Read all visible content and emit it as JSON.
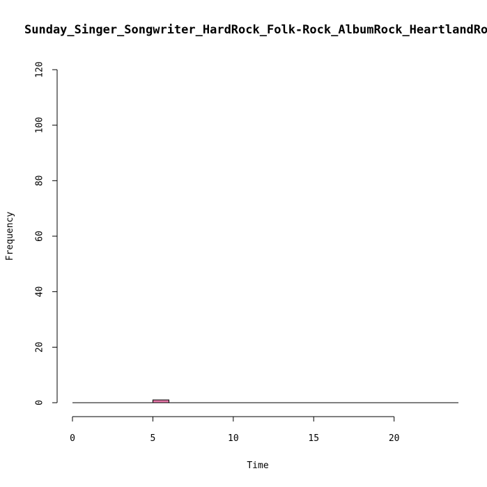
{
  "chart_data": {
    "type": "bar",
    "title": "Sunday_Singer_Songwriter_HardRock_Folk-Rock_AlbumRock_HeartlandRock",
    "xlabel": "Time",
    "ylabel": "Frequency",
    "xlim": [
      0,
      24
    ],
    "ylim": [
      0,
      120
    ],
    "x_ticks": [
      0,
      5,
      10,
      15,
      20
    ],
    "y_ticks": [
      0,
      20,
      40,
      60,
      80,
      100,
      120
    ],
    "bin_width": 1,
    "bins_start": [
      0,
      1,
      2,
      3,
      4,
      5,
      6,
      7,
      8,
      9,
      10,
      11,
      12,
      13,
      14,
      15,
      16,
      17,
      18,
      19,
      20,
      21,
      22,
      23
    ],
    "values": [
      0,
      0,
      0,
      0,
      0,
      1,
      0,
      0,
      0,
      0,
      0,
      0,
      0,
      0,
      0,
      0,
      0,
      0,
      0,
      0,
      0,
      0,
      0,
      0
    ],
    "bar_color": "#e377a7",
    "grid": false,
    "legend": "none"
  }
}
